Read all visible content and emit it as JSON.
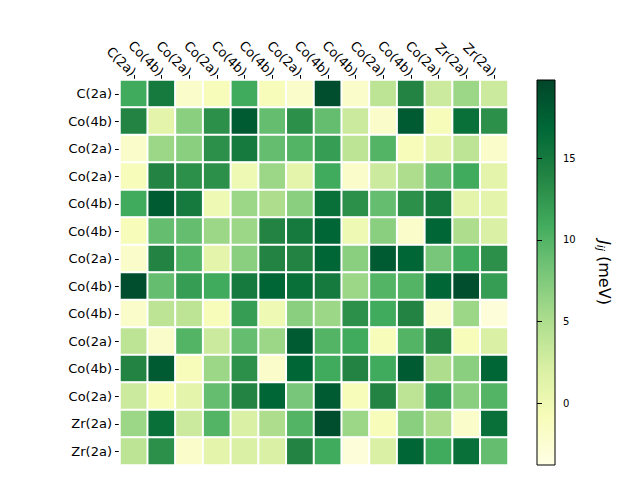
{
  "chart_data": {
    "type": "heatmap",
    "x_categories": [
      "C(2a)",
      "Co(4b)",
      "Co(2a)",
      "Co(2a)",
      "Co(4b)",
      "Co(4b)",
      "Co(2a)",
      "Co(4b)",
      "Co(4b)",
      "Co(2a)",
      "Co(4b)",
      "Co(2a)",
      "Zr(2a)",
      "Zr(2a)"
    ],
    "y_categories": [
      "C(2a)",
      "Co(4b)",
      "Co(2a)",
      "Co(2a)",
      "Co(4b)",
      "Co(4b)",
      "Co(2a)",
      "Co(4b)",
      "Co(4b)",
      "Co(2a)",
      "Co(4b)",
      "Co(2a)",
      "Zr(2a)",
      "Zr(2a)"
    ],
    "cells": [
      [
        11,
        15,
        -2,
        -1,
        11,
        -1,
        -2,
        19,
        -2,
        4,
        14,
        3,
        6,
        3
      ],
      [
        14,
        1,
        7,
        13,
        18,
        9,
        13,
        9,
        3,
        -2,
        18,
        -1,
        16,
        13
      ],
      [
        -2,
        6,
        7,
        13,
        15,
        9,
        10,
        12,
        4,
        10,
        -1,
        1,
        4,
        -2
      ],
      [
        -1,
        14,
        13,
        13,
        0,
        6,
        1,
        11,
        -2,
        3,
        5,
        9,
        11,
        1
      ],
      [
        11,
        18,
        15,
        0,
        6,
        5,
        7,
        16,
        13,
        9,
        13,
        15,
        1,
        1
      ],
      [
        -1,
        9,
        9,
        6,
        6,
        14,
        15,
        17,
        0,
        7,
        -2,
        17,
        5,
        2
      ],
      [
        -2,
        14,
        10,
        1,
        7,
        14,
        14,
        17,
        7,
        18,
        17,
        8,
        11,
        13
      ],
      [
        19,
        9,
        12,
        11,
        15,
        17,
        16,
        15,
        6,
        10,
        10,
        17,
        19,
        12
      ],
      [
        -2,
        4,
        4,
        -1,
        12,
        0,
        7,
        6,
        13,
        11,
        14,
        -2,
        6,
        -3
      ],
      [
        4,
        -2,
        10,
        3,
        9,
        6,
        18,
        10,
        11,
        -1,
        10,
        14,
        -1,
        2
      ],
      [
        14,
        18,
        -1,
        6,
        13,
        -2,
        17,
        11,
        14,
        11,
        18,
        5,
        7,
        17
      ],
      [
        3,
        -1,
        1,
        9,
        14,
        17,
        8,
        18,
        -1,
        14,
        4,
        12,
        7,
        10
      ],
      [
        6,
        16,
        3,
        10,
        2,
        5,
        10,
        19,
        6,
        -1,
        7,
        5,
        -2,
        16
      ],
      [
        4,
        13,
        -2,
        1,
        2,
        2,
        14,
        11,
        -3,
        2,
        17,
        11,
        16,
        9
      ]
    ],
    "colors": [
      "#ffffe5",
      "#f7fcb9",
      "#d9f0a3",
      "#addd8e",
      "#78c679",
      "#41ab5d",
      "#238443",
      "#006837",
      "#004529"
    ],
    "colorbar": {
      "range": [
        -3.8,
        19.8
      ],
      "ticks": [
        0,
        5,
        10,
        15
      ],
      "label": {
        "symbol": "J",
        "subscript": "ij",
        "text": "(meV)"
      }
    }
  }
}
